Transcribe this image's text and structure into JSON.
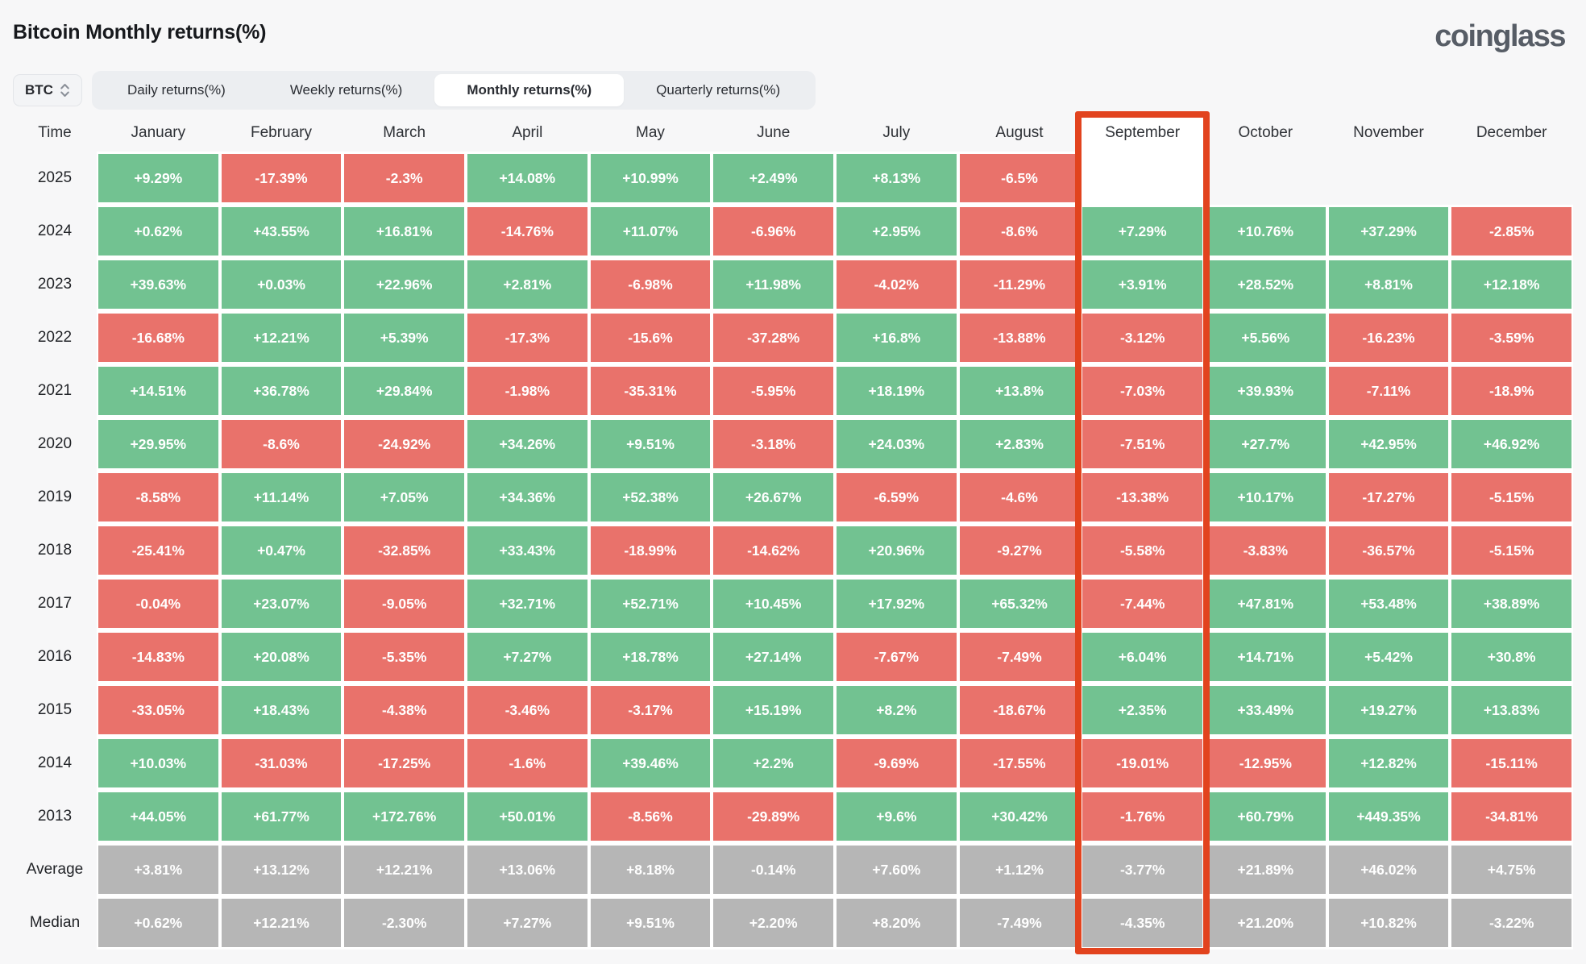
{
  "title": "Bitcoin Monthly returns(%)",
  "logo_text": "coinglass",
  "toolbar": {
    "symbol": "BTC",
    "tabs": [
      {
        "label": "Daily returns(%)",
        "active": false
      },
      {
        "label": "Weekly returns(%)",
        "active": false
      },
      {
        "label": "Monthly returns(%)",
        "active": true
      },
      {
        "label": "Quarterly returns(%)",
        "active": false
      }
    ]
  },
  "colors": {
    "positive": "#72c291",
    "negative": "#e9726b",
    "summary": "#b6b6b6",
    "highlight_border": "#e2431e",
    "background": "#f7f7f8"
  },
  "chart_data": {
    "type": "heatmap",
    "title": "Bitcoin Monthly returns(%)",
    "highlighted_column": "September",
    "time_header": "Time",
    "months": [
      "January",
      "February",
      "March",
      "April",
      "May",
      "June",
      "July",
      "August",
      "September",
      "October",
      "November",
      "December"
    ],
    "rows": [
      {
        "label": "2025",
        "type": "year",
        "values": [
          "+9.29%",
          "-17.39%",
          "-2.3%",
          "+14.08%",
          "+10.99%",
          "+2.49%",
          "+8.13%",
          "-6.5%",
          "",
          null,
          null,
          null
        ]
      },
      {
        "label": "2024",
        "type": "year",
        "values": [
          "+0.62%",
          "+43.55%",
          "+16.81%",
          "-14.76%",
          "+11.07%",
          "-6.96%",
          "+2.95%",
          "-8.6%",
          "+7.29%",
          "+10.76%",
          "+37.29%",
          "-2.85%"
        ]
      },
      {
        "label": "2023",
        "type": "year",
        "values": [
          "+39.63%",
          "+0.03%",
          "+22.96%",
          "+2.81%",
          "-6.98%",
          "+11.98%",
          "-4.02%",
          "-11.29%",
          "+3.91%",
          "+28.52%",
          "+8.81%",
          "+12.18%"
        ]
      },
      {
        "label": "2022",
        "type": "year",
        "values": [
          "-16.68%",
          "+12.21%",
          "+5.39%",
          "-17.3%",
          "-15.6%",
          "-37.28%",
          "+16.8%",
          "-13.88%",
          "-3.12%",
          "+5.56%",
          "-16.23%",
          "-3.59%"
        ]
      },
      {
        "label": "2021",
        "type": "year",
        "values": [
          "+14.51%",
          "+36.78%",
          "+29.84%",
          "-1.98%",
          "-35.31%",
          "-5.95%",
          "+18.19%",
          "+13.8%",
          "-7.03%",
          "+39.93%",
          "-7.11%",
          "-18.9%"
        ]
      },
      {
        "label": "2020",
        "type": "year",
        "values": [
          "+29.95%",
          "-8.6%",
          "-24.92%",
          "+34.26%",
          "+9.51%",
          "-3.18%",
          "+24.03%",
          "+2.83%",
          "-7.51%",
          "+27.7%",
          "+42.95%",
          "+46.92%"
        ]
      },
      {
        "label": "2019",
        "type": "year",
        "values": [
          "-8.58%",
          "+11.14%",
          "+7.05%",
          "+34.36%",
          "+52.38%",
          "+26.67%",
          "-6.59%",
          "-4.6%",
          "-13.38%",
          "+10.17%",
          "-17.27%",
          "-5.15%"
        ]
      },
      {
        "label": "2018",
        "type": "year",
        "values": [
          "-25.41%",
          "+0.47%",
          "-32.85%",
          "+33.43%",
          "-18.99%",
          "-14.62%",
          "+20.96%",
          "-9.27%",
          "-5.58%",
          "-3.83%",
          "-36.57%",
          "-5.15%"
        ]
      },
      {
        "label": "2017",
        "type": "year",
        "values": [
          "-0.04%",
          "+23.07%",
          "-9.05%",
          "+32.71%",
          "+52.71%",
          "+10.45%",
          "+17.92%",
          "+65.32%",
          "-7.44%",
          "+47.81%",
          "+53.48%",
          "+38.89%"
        ]
      },
      {
        "label": "2016",
        "type": "year",
        "values": [
          "-14.83%",
          "+20.08%",
          "-5.35%",
          "+7.27%",
          "+18.78%",
          "+27.14%",
          "-7.67%",
          "-7.49%",
          "+6.04%",
          "+14.71%",
          "+5.42%",
          "+30.8%"
        ]
      },
      {
        "label": "2015",
        "type": "year",
        "values": [
          "-33.05%",
          "+18.43%",
          "-4.38%",
          "-3.46%",
          "-3.17%",
          "+15.19%",
          "+8.2%",
          "-18.67%",
          "+2.35%",
          "+33.49%",
          "+19.27%",
          "+13.83%"
        ]
      },
      {
        "label": "2014",
        "type": "year",
        "values": [
          "+10.03%",
          "-31.03%",
          "-17.25%",
          "-1.6%",
          "+39.46%",
          "+2.2%",
          "-9.69%",
          "-17.55%",
          "-19.01%",
          "-12.95%",
          "+12.82%",
          "-15.11%"
        ]
      },
      {
        "label": "2013",
        "type": "year",
        "values": [
          "+44.05%",
          "+61.77%",
          "+172.76%",
          "+50.01%",
          "-8.56%",
          "-29.89%",
          "+9.6%",
          "+30.42%",
          "-1.76%",
          "+60.79%",
          "+449.35%",
          "-34.81%"
        ]
      },
      {
        "label": "Average",
        "type": "summary",
        "values": [
          "+3.81%",
          "+13.12%",
          "+12.21%",
          "+13.06%",
          "+8.18%",
          "-0.14%",
          "+7.60%",
          "+1.12%",
          "-3.77%",
          "+21.89%",
          "+46.02%",
          "+4.75%"
        ]
      },
      {
        "label": "Median",
        "type": "summary",
        "values": [
          "+0.62%",
          "+12.21%",
          "-2.30%",
          "+7.27%",
          "+9.51%",
          "+2.20%",
          "+8.20%",
          "-7.49%",
          "-4.35%",
          "+21.20%",
          "+10.82%",
          "-3.22%"
        ]
      }
    ]
  }
}
